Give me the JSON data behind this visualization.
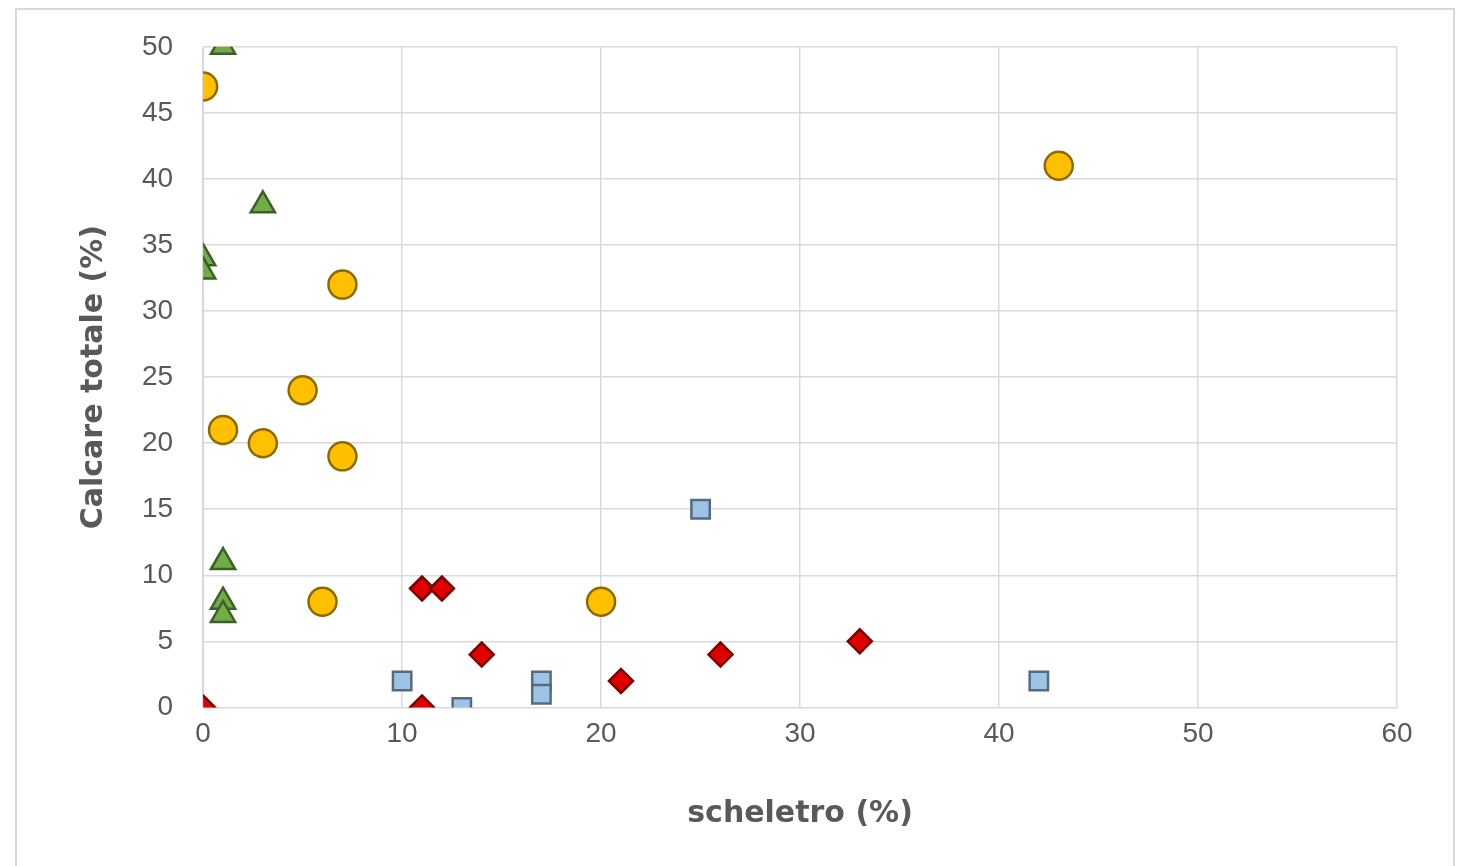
{
  "chart_data": {
    "type": "scatter",
    "xlabel": "scheletro (%)",
    "ylabel": "Calcare totale (%)",
    "xlim": [
      0,
      60
    ],
    "xticks": [
      0,
      10,
      20,
      30,
      40,
      50,
      60
    ],
    "ylim": [
      0,
      50
    ],
    "yticks": [
      0,
      5,
      10,
      15,
      20,
      25,
      30,
      35,
      40,
      45,
      50
    ],
    "grid": true,
    "legend": false,
    "series": [
      {
        "color": "#70ad47",
        "marker": "triangle",
        "x": [
          1,
          3,
          0,
          0,
          1,
          1,
          1
        ],
        "values": [
          50,
          38,
          34,
          33,
          11,
          8,
          7
        ]
      },
      {
        "color": "#ffc000",
        "marker": "circle",
        "x": [
          0,
          43,
          7,
          5,
          1,
          3,
          7,
          6,
          20
        ],
        "values": [
          47,
          41,
          32,
          24,
          21,
          20,
          19,
          8,
          8
        ]
      },
      {
        "color": "#e00000",
        "marker": "diamond",
        "x": [
          0,
          11,
          12,
          14,
          11,
          21,
          26,
          33
        ],
        "values": [
          0,
          9,
          9,
          4,
          0,
          2,
          4,
          5
        ]
      },
      {
        "color": "#9dc3e6",
        "marker": "square",
        "x": [
          10,
          13,
          17,
          17,
          25,
          42
        ],
        "values": [
          2,
          0,
          2,
          1,
          15,
          2
        ]
      }
    ]
  }
}
